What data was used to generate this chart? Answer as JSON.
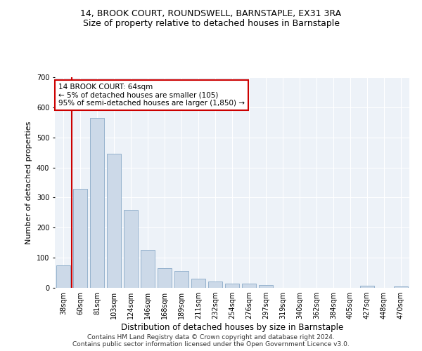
{
  "title1": "14, BROOK COURT, ROUNDSWELL, BARNSTAPLE, EX31 3RA",
  "title2": "Size of property relative to detached houses in Barnstaple",
  "xlabel": "Distribution of detached houses by size in Barnstaple",
  "ylabel": "Number of detached properties",
  "categories": [
    "38sqm",
    "60sqm",
    "81sqm",
    "103sqm",
    "124sqm",
    "146sqm",
    "168sqm",
    "189sqm",
    "211sqm",
    "232sqm",
    "254sqm",
    "276sqm",
    "297sqm",
    "319sqm",
    "340sqm",
    "362sqm",
    "384sqm",
    "405sqm",
    "427sqm",
    "448sqm",
    "470sqm"
  ],
  "values": [
    75,
    330,
    565,
    445,
    260,
    125,
    65,
    55,
    30,
    20,
    15,
    15,
    10,
    0,
    0,
    0,
    0,
    0,
    7,
    0,
    5
  ],
  "bar_color": "#ccd9e8",
  "bar_edge_color": "#8aaac8",
  "vline_x": 0.5,
  "vline_color": "#cc0000",
  "annotation_text": "14 BROOK COURT: 64sqm\n← 5% of detached houses are smaller (105)\n95% of semi-detached houses are larger (1,850) →",
  "annotation_box_color": "#ffffff",
  "annotation_box_edge": "#cc0000",
  "ylim": [
    0,
    700
  ],
  "yticks": [
    0,
    100,
    200,
    300,
    400,
    500,
    600,
    700
  ],
  "footer1": "Contains HM Land Registry data © Crown copyright and database right 2024.",
  "footer2": "Contains public sector information licensed under the Open Government Licence v3.0.",
  "plot_bg_color": "#edf2f8",
  "title1_fontsize": 9,
  "title2_fontsize": 9,
  "xlabel_fontsize": 8.5,
  "ylabel_fontsize": 8,
  "tick_fontsize": 7,
  "annotation_fontsize": 7.5,
  "footer_fontsize": 6.5
}
